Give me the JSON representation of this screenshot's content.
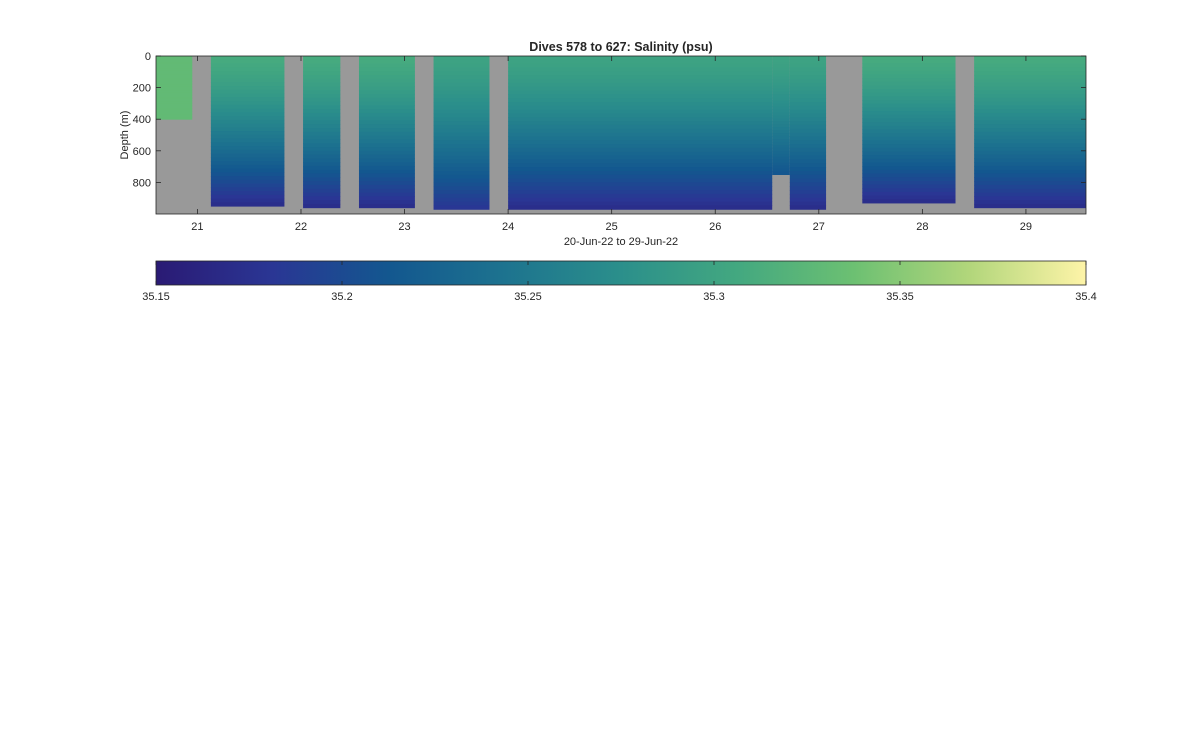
{
  "chart_data": [
    {
      "type": "heatmap",
      "title": "Dives 578 to 627: Salinity (psu)",
      "xlabel": "20-Jun-22 to 29-Jun-22",
      "ylabel": "Depth (m)",
      "x_ticks": [
        "21",
        "22",
        "23",
        "24",
        "25",
        "26",
        "27",
        "28",
        "29"
      ],
      "x_tick_values": [
        21,
        22,
        23,
        24,
        25,
        26,
        27,
        28,
        29
      ],
      "xlim": [
        20.6,
        29.58
      ],
      "y_ticks": [
        "0",
        "200",
        "400",
        "600",
        "800"
      ],
      "y_tick_values": [
        0,
        200,
        400,
        600,
        800
      ],
      "ylim": [
        0,
        1000
      ],
      "y_reversed": true,
      "no_data_color": "#999999",
      "dives": [
        {
          "start": 20.6,
          "end": 20.95,
          "max_depth": 400,
          "near_surface_salinity": 35.33,
          "deep_salinity": 35.33
        },
        {
          "start": 21.13,
          "end": 21.84,
          "max_depth": 950,
          "near_surface_salinity": 35.31,
          "deep_salinity": 35.17
        },
        {
          "start": 22.02,
          "end": 22.38,
          "max_depth": 960,
          "near_surface_salinity": 35.31,
          "deep_salinity": 35.17
        },
        {
          "start": 22.56,
          "end": 23.1,
          "max_depth": 960,
          "near_surface_salinity": 35.31,
          "deep_salinity": 35.17
        },
        {
          "start": 23.28,
          "end": 23.82,
          "max_depth": 970,
          "near_surface_salinity": 35.3,
          "deep_salinity": 35.18
        },
        {
          "start": 24.0,
          "end": 26.55,
          "max_depth": 970,
          "near_surface_salinity": 35.3,
          "deep_salinity": 35.17
        },
        {
          "start": 26.55,
          "end": 26.72,
          "max_depth": 750,
          "near_surface_salinity": 35.3,
          "deep_salinity": 35.21
        },
        {
          "start": 26.72,
          "end": 27.07,
          "max_depth": 970,
          "near_surface_salinity": 35.3,
          "deep_salinity": 35.17
        },
        {
          "start": 27.42,
          "end": 28.32,
          "max_depth": 930,
          "near_surface_salinity": 35.31,
          "deep_salinity": 35.17
        },
        {
          "start": 28.5,
          "end": 29.58,
          "max_depth": 960,
          "near_surface_salinity": 35.31,
          "deep_salinity": 35.17
        }
      ],
      "colorbar": {
        "min": 35.15,
        "max": 35.4,
        "ticks": [
          "35.15",
          "35.2",
          "35.25",
          "35.3",
          "35.35",
          "35.4"
        ],
        "tick_values": [
          35.15,
          35.2,
          35.25,
          35.3,
          35.35,
          35.4
        ],
        "colormap": [
          "#2a1a74",
          "#2a3694",
          "#13578f",
          "#1d738f",
          "#2b8f8b",
          "#43a880",
          "#6cc072",
          "#b2d67b",
          "#fef4a8"
        ]
      }
    }
  ]
}
